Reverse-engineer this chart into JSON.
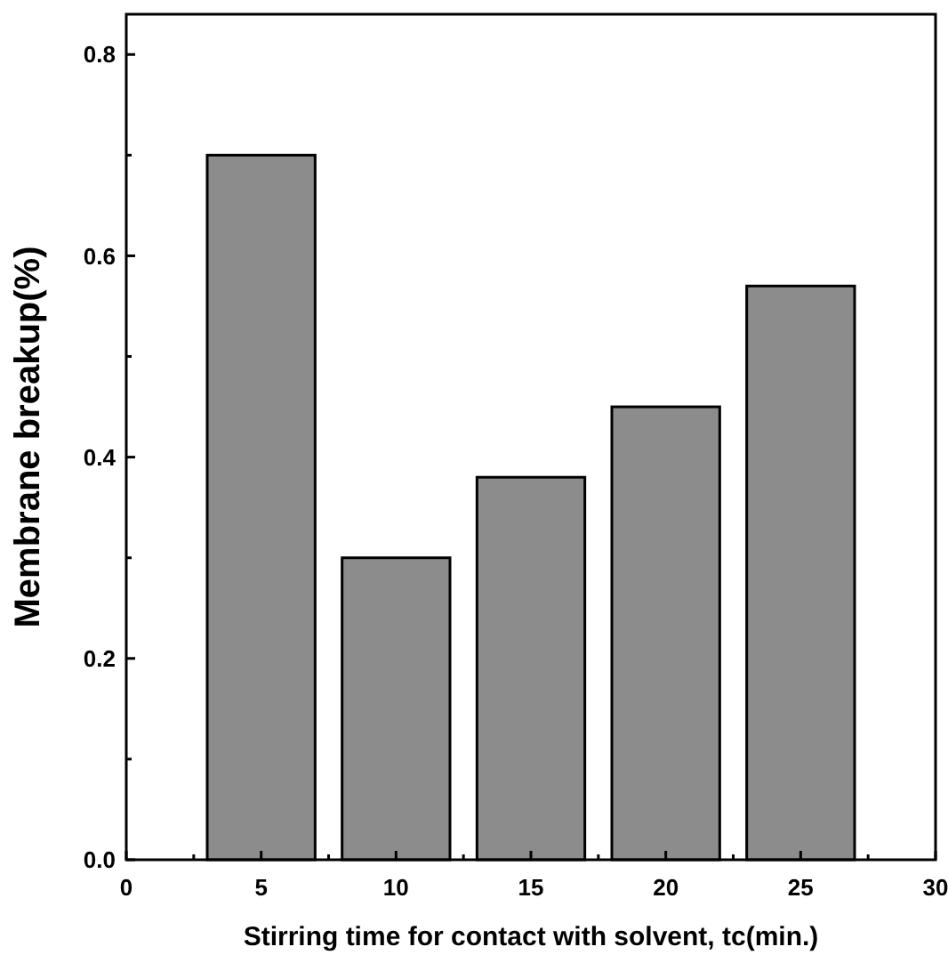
{
  "chart_data": {
    "type": "bar",
    "xlabel": "Stirring time for contact with solvent, tc(min.)",
    "ylabel": "Membrane breakup(%)",
    "x": [
      5,
      10,
      15,
      20,
      25
    ],
    "values": [
      0.7,
      0.3,
      0.38,
      0.45,
      0.57
    ],
    "color": "#8c8c8c",
    "xlim": [
      0,
      30
    ],
    "xticks": [
      0,
      {
        "value": 2.5,
        "label": null
      },
      5,
      {
        "value": 7.5,
        "label": null
      },
      10,
      {
        "value": 12.5,
        "label": null
      },
      15,
      {
        "value": 17.5,
        "label": null
      },
      20,
      {
        "value": 22.5,
        "label": null
      },
      25,
      {
        "value": 27.5,
        "label": null
      },
      30
    ],
    "ylim": [
      0,
      0.84
    ],
    "yticks": [
      {
        "value": 0,
        "label": "0.0"
      },
      {
        "value": 0.1,
        "label": null
      },
      {
        "value": 0.2,
        "label": "0.2"
      },
      {
        "value": 0.3,
        "label": null
      },
      {
        "value": 0.4,
        "label": "0.4"
      },
      {
        "value": 0.5,
        "label": null
      },
      {
        "value": 0.6,
        "label": "0.6"
      },
      {
        "value": 0.7,
        "label": null
      },
      {
        "value": 0.8,
        "label": "0.8"
      }
    ],
    "grid": false
  }
}
